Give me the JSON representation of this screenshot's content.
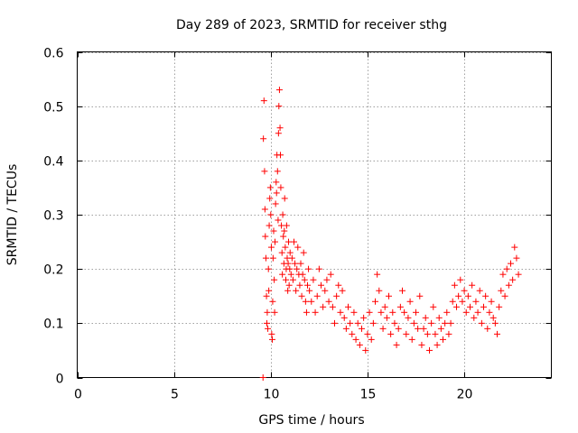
{
  "chart_data": {
    "type": "scatter",
    "title": "Day 289 of 2023, SRMTID for receiver sthg",
    "xlabel": "GPS time / hours",
    "ylabel": "SRMTID / TECUs",
    "xlim": [
      0,
      24.5
    ],
    "ylim": [
      0,
      0.6
    ],
    "xticks": [
      0,
      5,
      10,
      15,
      20
    ],
    "yticks": [
      0,
      0.1,
      0.2,
      0.3,
      0.4,
      0.5,
      0.6
    ],
    "xtick_labels": [
      "0",
      "5",
      "10",
      "15",
      "20"
    ],
    "ytick_labels": [
      "0",
      "0.1",
      "0.2",
      "0.3",
      "0.4",
      "0.5",
      "0.6"
    ],
    "grid": true,
    "marker": "+",
    "color": "#ff0000",
    "series": [
      {
        "name": "SRMTID",
        "x": [
          9.6,
          9.62,
          9.65,
          9.68,
          9.7,
          9.72,
          9.75,
          9.78,
          9.8,
          9.82,
          9.85,
          9.88,
          9.9,
          9.92,
          9.95,
          9.98,
          10.0,
          10.03,
          10.05,
          10.08,
          10.1,
          10.12,
          10.15,
          10.18,
          10.2,
          10.22,
          10.25,
          10.28,
          10.3,
          10.32,
          10.35,
          10.38,
          10.4,
          10.42,
          10.45,
          10.48,
          10.5,
          10.52,
          10.55,
          10.58,
          10.6,
          10.62,
          10.65,
          10.68,
          10.7,
          10.72,
          10.75,
          10.78,
          10.8,
          10.82,
          10.85,
          10.88,
          10.9,
          10.92,
          10.95,
          10.98,
          11.0,
          11.05,
          11.1,
          11.15,
          11.2,
          11.25,
          11.3,
          11.35,
          11.4,
          11.45,
          11.5,
          11.55,
          11.6,
          11.65,
          11.7,
          11.75,
          11.8,
          11.85,
          11.9,
          11.95,
          12.0,
          12.1,
          12.2,
          12.3,
          12.4,
          12.5,
          12.6,
          12.7,
          12.8,
          12.9,
          13.0,
          13.1,
          13.2,
          13.3,
          13.4,
          13.5,
          13.6,
          13.7,
          13.8,
          13.9,
          14.0,
          14.1,
          14.2,
          14.3,
          14.4,
          14.5,
          14.6,
          14.7,
          14.8,
          14.9,
          15.0,
          15.1,
          15.2,
          15.3,
          15.4,
          15.5,
          15.6,
          15.7,
          15.8,
          15.9,
          16.0,
          16.1,
          16.2,
          16.3,
          16.4,
          16.5,
          16.6,
          16.7,
          16.8,
          16.9,
          17.0,
          17.1,
          17.2,
          17.3,
          17.4,
          17.5,
          17.6,
          17.7,
          17.8,
          17.9,
          18.0,
          18.1,
          18.2,
          18.3,
          18.4,
          18.5,
          18.6,
          18.7,
          18.8,
          18.9,
          19.0,
          19.1,
          19.2,
          19.3,
          19.4,
          19.5,
          19.6,
          19.7,
          19.8,
          19.9,
          20.0,
          20.1,
          20.2,
          20.3,
          20.4,
          20.5,
          20.6,
          20.7,
          20.8,
          20.9,
          21.0,
          21.1,
          21.2,
          21.3,
          21.4,
          21.5,
          21.6,
          21.7,
          21.8,
          21.9,
          22.0,
          22.1,
          22.2,
          22.3,
          22.4,
          22.5,
          22.6,
          22.7,
          22.8
        ],
        "y": [
          0.0,
          0.44,
          0.51,
          0.38,
          0.31,
          0.26,
          0.22,
          0.15,
          0.1,
          0.12,
          0.09,
          0.2,
          0.16,
          0.28,
          0.33,
          0.35,
          0.3,
          0.24,
          0.08,
          0.07,
          0.14,
          0.22,
          0.27,
          0.18,
          0.12,
          0.25,
          0.32,
          0.36,
          0.34,
          0.41,
          0.38,
          0.29,
          0.45,
          0.5,
          0.53,
          0.46,
          0.41,
          0.35,
          0.28,
          0.23,
          0.19,
          0.3,
          0.26,
          0.21,
          0.27,
          0.33,
          0.24,
          0.18,
          0.2,
          0.28,
          0.22,
          0.16,
          0.21,
          0.25,
          0.17,
          0.2,
          0.23,
          0.19,
          0.22,
          0.18,
          0.25,
          0.21,
          0.16,
          0.2,
          0.24,
          0.19,
          0.17,
          0.21,
          0.15,
          0.19,
          0.23,
          0.18,
          0.14,
          0.12,
          0.17,
          0.2,
          0.16,
          0.14,
          0.18,
          0.12,
          0.15,
          0.2,
          0.17,
          0.13,
          0.16,
          0.18,
          0.14,
          0.19,
          0.13,
          0.1,
          0.15,
          0.17,
          0.12,
          0.16,
          0.11,
          0.09,
          0.13,
          0.1,
          0.08,
          0.12,
          0.07,
          0.1,
          0.06,
          0.09,
          0.11,
          0.05,
          0.08,
          0.12,
          0.07,
          0.1,
          0.14,
          0.19,
          0.16,
          0.12,
          0.09,
          0.13,
          0.11,
          0.15,
          0.08,
          0.12,
          0.1,
          0.06,
          0.09,
          0.13,
          0.16,
          0.12,
          0.08,
          0.11,
          0.14,
          0.07,
          0.1,
          0.12,
          0.09,
          0.15,
          0.06,
          0.09,
          0.11,
          0.08,
          0.05,
          0.1,
          0.13,
          0.08,
          0.06,
          0.11,
          0.09,
          0.07,
          0.1,
          0.12,
          0.08,
          0.1,
          0.14,
          0.17,
          0.13,
          0.15,
          0.18,
          0.14,
          0.16,
          0.12,
          0.15,
          0.13,
          0.17,
          0.11,
          0.14,
          0.12,
          0.16,
          0.1,
          0.13,
          0.15,
          0.09,
          0.12,
          0.14,
          0.11,
          0.1,
          0.08,
          0.13,
          0.16,
          0.19,
          0.15,
          0.2,
          0.17,
          0.21,
          0.18,
          0.24,
          0.22,
          0.19
        ]
      }
    ]
  }
}
